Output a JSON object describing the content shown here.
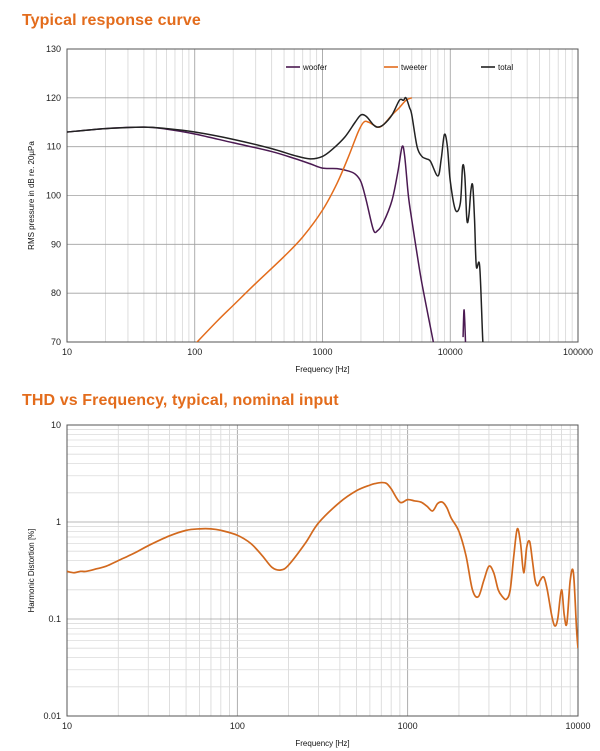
{
  "chart_data": [
    {
      "type": "line",
      "title": "Typical response curve",
      "xlabel": "Frequency [Hz]",
      "ylabel": "RMS pressure in dB re. 20µPa",
      "xscale": "log",
      "xlim": [
        10,
        100000
      ],
      "ylim": [
        70,
        130
      ],
      "xticks": [
        "10",
        "100",
        "1000",
        "10000",
        "100000"
      ],
      "yticks": [
        "70",
        "80",
        "90",
        "100",
        "110",
        "120",
        "130"
      ],
      "grid": true,
      "legend": "top-right",
      "series": [
        {
          "name": "woofer",
          "color": "#4b1a52",
          "x": [
            10,
            20,
            40,
            60,
            100,
            200,
            400,
            600,
            800,
            1000,
            1300,
            1600,
            1800,
            2000,
            2200,
            2500,
            2700,
            3000,
            3500,
            3900,
            4200,
            4400,
            4700,
            5000,
            5500,
            6000,
            7000,
            7500
          ],
          "y": [
            113,
            113.7,
            114,
            113.6,
            112.6,
            110.8,
            109,
            107.6,
            106.5,
            105.6,
            105.5,
            105,
            104.4,
            102.8,
            99,
            93,
            92.8,
            94.5,
            99,
            105,
            110,
            108,
            100,
            95,
            88,
            82,
            73,
            69
          ],
          "fragments": [
            {
              "x": [
                12600,
                12800,
                13000,
                13200
              ],
              "y": [
                71,
                76.5,
                74,
                69
              ]
            }
          ]
        },
        {
          "name": "tweeter",
          "color": "#e36c1c",
          "x": [
            100,
            150,
            200,
            300,
            500,
            700,
            1000,
            1300,
            1600,
            1900,
            2100,
            2300,
            2700,
            3000,
            3500,
            4000,
            4500,
            5000
          ],
          "y": [
            69.5,
            74.3,
            77.5,
            82,
            87.5,
            91.5,
            97,
            102.5,
            108,
            113,
            115,
            115,
            114,
            114.5,
            116.5,
            118,
            119.5,
            120
          ]
        },
        {
          "name": "total",
          "color": "#222222",
          "x": [
            10,
            20,
            40,
            60,
            100,
            200,
            400,
            600,
            800,
            1000,
            1200,
            1500,
            1800,
            2000,
            2200,
            2500,
            2700,
            3000,
            3500,
            4000,
            4300,
            4500,
            4800,
            5000,
            5500,
            6000,
            6500,
            7000,
            8000,
            8500,
            9000,
            9500,
            10000,
            11000,
            12000,
            12500,
            13000,
            13500,
            14000,
            14500,
            15000,
            15500,
            16000,
            17000,
            18000,
            18500
          ],
          "y": [
            113,
            113.7,
            114,
            113.7,
            113,
            111.5,
            109.6,
            108.2,
            107.5,
            108,
            109.5,
            112,
            115,
            116.5,
            116.2,
            114.5,
            114,
            114.5,
            116.5,
            119.5,
            119.5,
            120,
            118,
            116.5,
            110,
            108,
            107.5,
            107,
            104,
            107.5,
            112.5,
            110,
            103,
            97,
            98.5,
            106,
            104,
            95,
            96,
            101,
            102,
            95,
            85.5,
            85.5,
            70,
            69
          ]
        }
      ]
    },
    {
      "type": "line",
      "title": "THD vs Frequency, typical, nominal input",
      "xlabel": "Frequency [Hz]",
      "ylabel": "Harmonic Distortion [%]",
      "xscale": "log",
      "yscale": "log",
      "xlim": [
        10,
        10000
      ],
      "ylim": [
        0.01,
        10
      ],
      "xticks": [
        "10",
        "100",
        "1000",
        "10000"
      ],
      "yticks": [
        "0.01",
        "0.1",
        "1",
        "10"
      ],
      "grid": true,
      "series": [
        {
          "color": "#d2691e",
          "x": [
            10,
            11,
            12,
            13,
            15,
            17,
            20,
            25,
            30,
            40,
            50,
            60,
            70,
            80,
            100,
            120,
            140,
            160,
            180,
            200,
            250,
            300,
            400,
            500,
            600,
            650,
            700,
            750,
            800,
            900,
            1000,
            1100,
            1200,
            1300,
            1400,
            1500,
            1600,
            1700,
            1800,
            2000,
            2200,
            2400,
            2600,
            2800,
            3000,
            3200,
            3400,
            3600,
            3800,
            4000,
            4200,
            4400,
            4600,
            4800,
            5000,
            5200,
            5400,
            5600,
            5800,
            6000,
            6300,
            6600,
            7000,
            7300,
            7600,
            8000,
            8300,
            8600,
            9000,
            9400,
            9800,
            10000
          ],
          "y": [
            0.31,
            0.3,
            0.31,
            0.31,
            0.33,
            0.35,
            0.4,
            0.48,
            0.57,
            0.72,
            0.82,
            0.85,
            0.85,
            0.82,
            0.73,
            0.6,
            0.45,
            0.34,
            0.32,
            0.36,
            0.6,
            0.98,
            1.6,
            2.1,
            2.4,
            2.5,
            2.55,
            2.5,
            2.2,
            1.6,
            1.7,
            1.65,
            1.6,
            1.45,
            1.3,
            1.55,
            1.6,
            1.4,
            1.1,
            0.8,
            0.45,
            0.2,
            0.17,
            0.25,
            0.35,
            0.3,
            0.2,
            0.17,
            0.16,
            0.2,
            0.45,
            0.85,
            0.6,
            0.3,
            0.55,
            0.63,
            0.4,
            0.25,
            0.22,
            0.25,
            0.27,
            0.2,
            0.11,
            0.085,
            0.1,
            0.2,
            0.11,
            0.09,
            0.25,
            0.3,
            0.08,
            0.05
          ]
        }
      ]
    }
  ]
}
